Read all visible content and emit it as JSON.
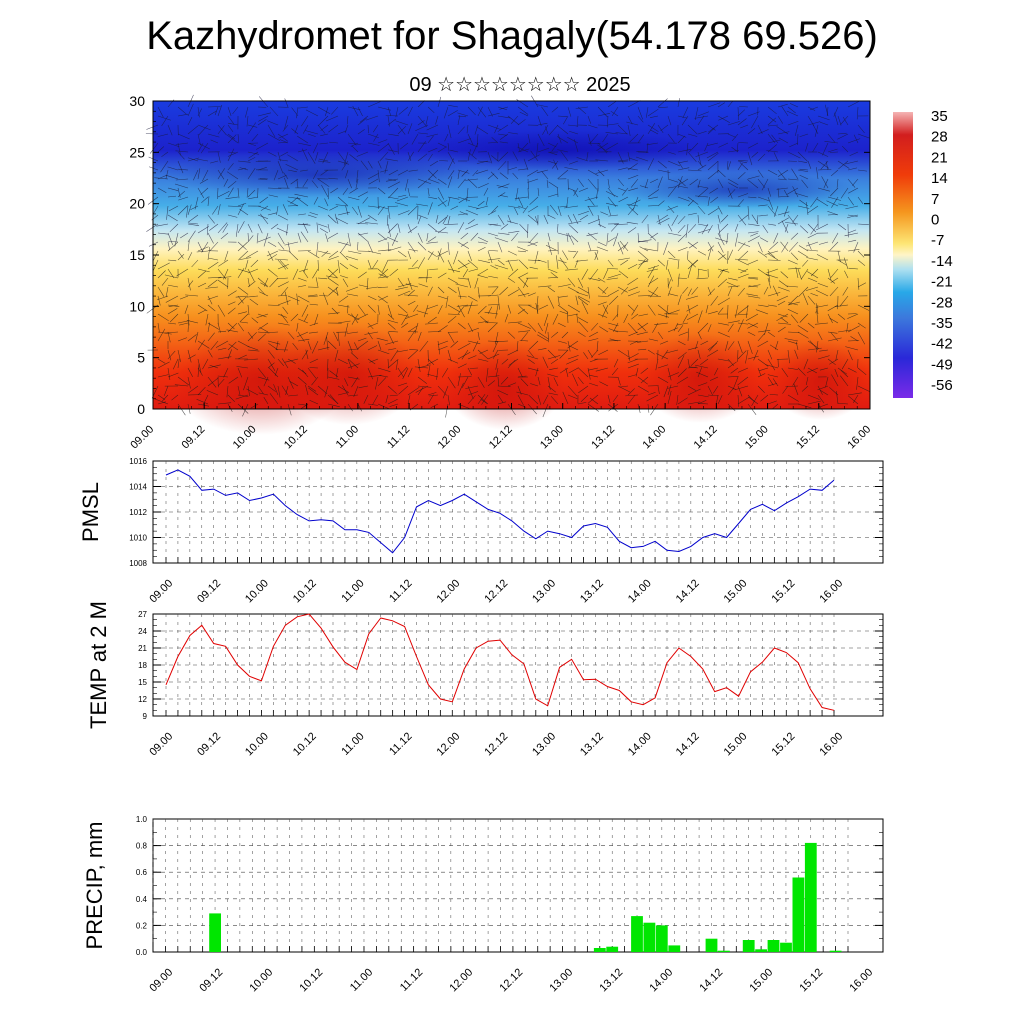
{
  "title": "Kazhydromet for Shagaly(54.178 69.526)",
  "subtitle": "09 ☆☆☆☆☆☆☆☆ 2025",
  "time_labels": [
    "09.00",
    "09.12",
    "10.00",
    "10.12",
    "11.00",
    "11.12",
    "12.00",
    "12.12",
    "13.00",
    "13.12",
    "14.00",
    "14.12",
    "15.00",
    "15.12",
    "16.00"
  ],
  "chart_data": [
    {
      "type": "heatmap",
      "title": "",
      "xlabel": "",
      "ylabel": "",
      "y_ticks": [
        0,
        5,
        10,
        15,
        20,
        25,
        30
      ],
      "ylim": [
        0,
        30
      ],
      "colorbar_labels": [
        35,
        28,
        21,
        14,
        7,
        0,
        -7,
        -14,
        -21,
        -28,
        -35,
        -42,
        -49,
        -56
      ],
      "colorbar_range": [
        -60,
        38
      ],
      "temperature_profile": {
        "heights": [
          0,
          5,
          10,
          15,
          20,
          25,
          30
        ],
        "values": [
          28,
          20,
          8,
          -10,
          -28,
          -50,
          -48
        ]
      },
      "overlay": "wind vectors"
    },
    {
      "type": "line",
      "ylabel": "PMSL",
      "ylim": [
        1008,
        1016
      ],
      "y_ticks": [
        1008,
        1010,
        1012,
        1014,
        1016
      ],
      "grid": true,
      "color": "#0000cc",
      "values": [
        1014.9,
        1015.3,
        1014.8,
        1013.7,
        1013.8,
        1013.3,
        1013.5,
        1012.9,
        1013.1,
        1013.4,
        1012.5,
        1011.8,
        1011.3,
        1011.4,
        1011.3,
        1010.6,
        1010.6,
        1010.4,
        1009.6,
        1008.8,
        1010.0,
        1012.4,
        1012.9,
        1012.5,
        1012.9,
        1013.4,
        1012.8,
        1012.2,
        1011.9,
        1011.3,
        1010.5,
        1009.9,
        1010.5,
        1010.3,
        1010.0,
        1010.9,
        1011.1,
        1010.8,
        1009.7,
        1009.2,
        1009.3,
        1009.7,
        1009.0,
        1008.9,
        1009.3,
        1010.0,
        1010.3,
        1010.0,
        1011.1,
        1012.2,
        1012.6,
        1012.1,
        1012.7,
        1013.2,
        1013.8,
        1013.7,
        1014.5
      ]
    },
    {
      "type": "line",
      "ylabel": "TEMP at 2 M",
      "ylim": [
        9,
        27
      ],
      "y_ticks": [
        9,
        12,
        15,
        18,
        21,
        24,
        27
      ],
      "grid": true,
      "color": "#e00000",
      "values": [
        14.5,
        19.5,
        23.2,
        25.0,
        21.8,
        21.3,
        18.0,
        16.0,
        15.2,
        21.3,
        25.0,
        26.5,
        27.0,
        24.5,
        21.2,
        18.5,
        17.2,
        23.5,
        26.3,
        25.8,
        24.8,
        19.5,
        14.5,
        12.0,
        11.5,
        17.3,
        21.0,
        22.2,
        22.4,
        19.8,
        18.2,
        12.0,
        10.8,
        17.6,
        19.0,
        15.4,
        15.5,
        14.2,
        13.5,
        11.5,
        11.0,
        12.2,
        18.4,
        21.0,
        19.5,
        17.3,
        13.3,
        14.0,
        12.5,
        16.8,
        18.5,
        21.0,
        20.2,
        18.4,
        13.8,
        10.5,
        10.0
      ]
    },
    {
      "type": "bar",
      "ylabel": "PRECIP, mm",
      "ylim": [
        0,
        1.0
      ],
      "y_ticks": [
        0.0,
        0.2,
        0.4,
        0.6,
        0.8,
        1.0
      ],
      "grid": true,
      "color": "#00e600",
      "values": [
        0,
        0,
        0,
        0,
        0,
        0.29,
        0,
        0,
        0,
        0,
        0,
        0,
        0,
        0,
        0,
        0,
        0,
        0,
        0,
        0,
        0,
        0,
        0,
        0,
        0,
        0,
        0,
        0,
        0,
        0,
        0,
        0,
        0,
        0,
        0,
        0,
        0.03,
        0.04,
        0,
        0.27,
        0.22,
        0.2,
        0.05,
        0,
        0,
        0.1,
        0.01,
        0,
        0.09,
        0.02,
        0.09,
        0.07,
        0.56,
        0.82,
        0,
        0.01,
        0
      ]
    }
  ]
}
